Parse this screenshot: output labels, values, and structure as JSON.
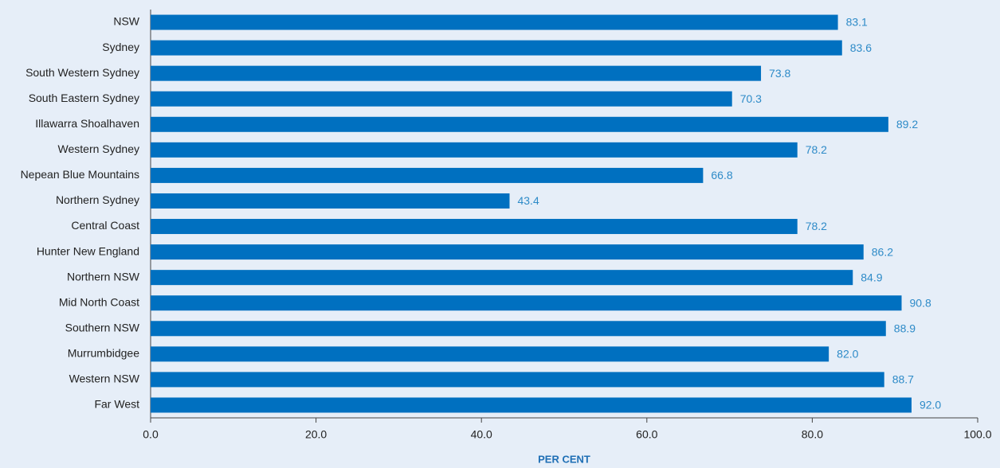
{
  "chart_data": {
    "type": "barh",
    "categories": [
      "NSW",
      "Sydney",
      "South Western Sydney",
      "South Eastern Sydney",
      "Illawarra Shoalhaven",
      "Western Sydney",
      "Nepean Blue Mountains",
      "Northern Sydney",
      "Central Coast",
      "Hunter New England",
      "Northern NSW",
      "Mid North Coast",
      "Southern NSW",
      "Murrumbidgee",
      "Western NSW",
      "Far West"
    ],
    "values": [
      83.1,
      83.6,
      73.8,
      70.3,
      89.2,
      78.2,
      66.8,
      43.4,
      78.2,
      86.2,
      84.9,
      90.8,
      88.9,
      82,
      88.7,
      92
    ],
    "value_labels": [
      "83.1",
      "83.6",
      "73.8",
      "70.3",
      "89.2",
      "78.2",
      "66.8",
      "43.4",
      "78.2",
      "86.2",
      "84.9",
      "90.8",
      "88.9",
      "82.0",
      "88.7",
      "92.0"
    ],
    "color": "#0070c0",
    "xlabel": "PER CENT",
    "xlim": [
      0,
      100
    ],
    "xticks": [
      {
        "value": 0,
        "label": "0.0"
      },
      {
        "value": 20,
        "label": "20.0"
      },
      {
        "value": 40,
        "label": "40.0"
      },
      {
        "value": 60,
        "label": "60.0"
      },
      {
        "value": 80,
        "label": "80.0"
      },
      {
        "value": 100,
        "label": "100.0"
      }
    ]
  }
}
